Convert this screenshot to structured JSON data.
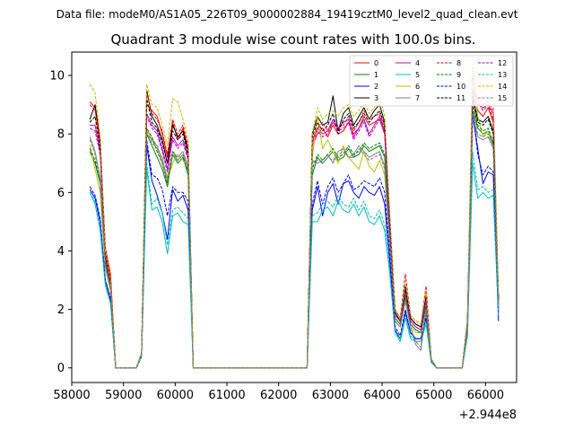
{
  "figure": {
    "suptitle": "Data file: modeM0/AS1A05_226T09_9000002884_19419cztM0_level2_quad_clean.evt"
  },
  "chart_data": {
    "type": "line",
    "title": "Quadrant 3 module wise count rates with 100.0s bins.",
    "xlabel": "",
    "ylabel": "",
    "x_offset_label": "+2.944e8",
    "xlim": [
      58000,
      66600
    ],
    "ylim": [
      -0.5,
      10.8
    ],
    "xticks": [
      58000,
      59000,
      60000,
      61000,
      62000,
      63000,
      64000,
      65000,
      66000
    ],
    "yticks": [
      0,
      2,
      4,
      6,
      8,
      10
    ],
    "legend_location": "upper right",
    "legend_columns": 4,
    "x": [
      58350,
      58450,
      58550,
      58650,
      58750,
      58850,
      58950,
      59050,
      59150,
      59250,
      59350,
      59450,
      59550,
      59650,
      59750,
      59850,
      59950,
      60050,
      60150,
      60250,
      60350,
      60450,
      60550,
      62550,
      62650,
      62750,
      62850,
      62950,
      63050,
      63150,
      63250,
      63350,
      63450,
      63550,
      63650,
      63750,
      63850,
      63950,
      64050,
      64150,
      64250,
      64350,
      64450,
      64550,
      64650,
      64750,
      64850,
      64950,
      65050,
      65150,
      65250,
      65350,
      65450,
      65550,
      65650,
      65750,
      65850,
      65950,
      66050,
      66150,
      66250
    ],
    "series": [
      {
        "name": "0",
        "color": "#ff0000",
        "dash": "solid",
        "values": [
          9.1,
          8.9,
          7.6,
          4.1,
          3.2,
          0.0,
          0.0,
          0.0,
          0.0,
          0.0,
          0.5,
          9.0,
          8.8,
          8.6,
          8.0,
          7.2,
          8.4,
          7.8,
          8.2,
          7.5,
          0.0,
          0.0,
          0.0,
          0.0,
          7.6,
          8.0,
          8.2,
          7.9,
          8.3,
          8.0,
          8.1,
          8.4,
          8.0,
          8.2,
          8.6,
          8.3,
          8.4,
          8.5,
          8.0,
          5.0,
          2.0,
          1.7,
          2.7,
          1.7,
          1.5,
          1.4,
          2.4,
          0.3,
          0.0,
          0.0,
          0.0,
          0.0,
          0.0,
          0.0,
          1.6,
          9.5,
          8.8,
          8.6,
          8.9,
          8.4,
          2.4
        ]
      },
      {
        "name": "1",
        "color": "#008000",
        "dash": "solid",
        "values": [
          7.4,
          7.0,
          6.3,
          3.6,
          2.8,
          0.0,
          0.0,
          0.0,
          0.0,
          0.0,
          0.5,
          8.0,
          7.6,
          7.2,
          6.8,
          6.2,
          7.3,
          7.0,
          7.2,
          6.6,
          0.0,
          0.0,
          0.0,
          0.0,
          6.6,
          7.2,
          7.0,
          7.2,
          7.4,
          7.1,
          7.2,
          7.5,
          7.2,
          7.3,
          7.6,
          7.4,
          7.5,
          7.6,
          7.2,
          4.4,
          1.7,
          1.5,
          2.4,
          1.5,
          1.3,
          1.2,
          2.1,
          0.3,
          0.0,
          0.0,
          0.0,
          0.0,
          0.0,
          0.0,
          1.5,
          8.8,
          8.2,
          8.0,
          8.1,
          7.6,
          2.1
        ]
      },
      {
        "name": "2",
        "color": "#0000ff",
        "dash": "solid",
        "values": [
          6.1,
          5.8,
          5.0,
          3.0,
          2.3,
          0.0,
          0.0,
          0.0,
          0.0,
          0.0,
          0.4,
          7.6,
          6.4,
          5.9,
          5.3,
          4.4,
          6.1,
          5.7,
          5.9,
          5.4,
          0.0,
          0.0,
          0.0,
          0.0,
          5.4,
          6.2,
          5.2,
          6.0,
          6.3,
          5.6,
          6.3,
          6.4,
          6.0,
          5.8,
          6.2,
          6.0,
          5.9,
          6.2,
          5.6,
          3.6,
          1.3,
          1.0,
          1.9,
          1.2,
          1.0,
          1.0,
          1.7,
          0.2,
          0.0,
          0.0,
          0.0,
          0.0,
          0.0,
          0.0,
          1.2,
          8.7,
          7.5,
          6.3,
          6.7,
          6.6,
          1.6
        ]
      },
      {
        "name": "3",
        "color": "#000000",
        "dash": "solid",
        "values": [
          8.5,
          9.0,
          7.8,
          3.9,
          3.0,
          0.0,
          0.0,
          0.0,
          0.0,
          0.0,
          0.5,
          9.5,
          8.6,
          8.3,
          7.8,
          7.0,
          8.3,
          7.9,
          8.1,
          7.4,
          0.0,
          0.0,
          0.0,
          0.0,
          8.0,
          8.6,
          8.3,
          8.4,
          9.3,
          8.1,
          8.7,
          8.9,
          8.3,
          8.6,
          8.9,
          8.5,
          8.8,
          9.0,
          8.4,
          5.0,
          1.9,
          1.6,
          2.8,
          1.7,
          1.5,
          1.4,
          2.5,
          0.3,
          0.0,
          0.0,
          0.0,
          0.0,
          0.0,
          0.0,
          1.6,
          9.3,
          8.5,
          8.4,
          8.6,
          8.1,
          2.3
        ]
      },
      {
        "name": "4",
        "color": "#bf00bf",
        "dash": "solid",
        "values": [
          8.3,
          8.3,
          7.4,
          3.8,
          2.9,
          0.0,
          0.0,
          0.0,
          0.0,
          0.0,
          0.5,
          8.7,
          8.3,
          8.1,
          7.5,
          6.8,
          7.9,
          7.6,
          7.8,
          7.2,
          0.0,
          0.0,
          0.0,
          0.0,
          7.8,
          8.2,
          8.0,
          8.1,
          8.5,
          8.2,
          8.4,
          8.5,
          7.9,
          8.2,
          8.5,
          8.0,
          8.3,
          8.6,
          8.1,
          4.8,
          1.8,
          1.6,
          2.6,
          1.6,
          1.4,
          1.3,
          2.3,
          0.3,
          0.0,
          0.0,
          0.0,
          0.0,
          0.0,
          0.0,
          1.5,
          9.2,
          9.0,
          8.9,
          9.0,
          8.7,
          2.3
        ]
      },
      {
        "name": "5",
        "color": "#00bfbf",
        "dash": "solid",
        "values": [
          6.0,
          5.6,
          4.7,
          2.8,
          2.2,
          0.0,
          0.0,
          0.0,
          0.0,
          0.0,
          0.4,
          6.8,
          5.4,
          5.5,
          5.0,
          3.9,
          5.2,
          5.3,
          5.0,
          4.9,
          0.0,
          0.0,
          0.0,
          0.0,
          5.0,
          5.0,
          5.4,
          5.5,
          5.2,
          5.7,
          5.4,
          5.3,
          5.6,
          5.2,
          5.5,
          5.0,
          4.9,
          5.2,
          4.7,
          3.2,
          1.2,
          0.9,
          1.7,
          1.0,
          0.9,
          0.9,
          1.5,
          0.2,
          0.0,
          0.0,
          0.0,
          0.0,
          0.0,
          0.0,
          1.1,
          7.0,
          5.8,
          6.0,
          5.8,
          5.9,
          1.8
        ]
      },
      {
        "name": "6",
        "color": "#bfbf00",
        "dash": "solid",
        "values": [
          7.6,
          6.8,
          6.0,
          3.4,
          2.6,
          0.0,
          0.0,
          0.0,
          0.0,
          0.0,
          0.5,
          8.2,
          7.8,
          7.5,
          7.2,
          6.4,
          7.0,
          7.3,
          7.1,
          6.8,
          0.0,
          0.0,
          0.0,
          0.0,
          7.2,
          8.6,
          7.5,
          7.8,
          7.4,
          7.0,
          7.6,
          7.2,
          7.0,
          6.8,
          7.4,
          6.9,
          6.7,
          7.1,
          6.6,
          4.2,
          1.6,
          1.4,
          2.3,
          1.4,
          1.2,
          1.2,
          2.0,
          0.3,
          0.0,
          0.0,
          0.0,
          0.0,
          0.0,
          0.0,
          1.4,
          10.2,
          8.6,
          7.9,
          8.1,
          7.7,
          2.0
        ]
      },
      {
        "name": "7",
        "color": "#808080",
        "dash": "solid",
        "values": [
          7.9,
          7.4,
          6.5,
          3.5,
          2.7,
          0.0,
          0.0,
          0.0,
          0.0,
          0.0,
          0.5,
          8.0,
          7.8,
          7.6,
          7.1,
          6.5,
          7.4,
          7.2,
          7.4,
          6.9,
          0.0,
          0.0,
          0.0,
          0.0,
          7.1,
          7.0,
          7.1,
          7.3,
          7.0,
          7.4,
          7.5,
          7.2,
          7.3,
          7.6,
          7.4,
          7.2,
          7.3,
          7.4,
          6.9,
          4.3,
          1.6,
          1.4,
          2.3,
          1.4,
          0.8,
          0.6,
          2.0,
          0.3,
          0.0,
          0.0,
          0.0,
          0.0,
          0.0,
          0.0,
          1.4,
          8.6,
          7.9,
          7.8,
          7.9,
          7.5,
          2.1
        ]
      },
      {
        "name": "8",
        "color": "#ff0000",
        "dash": "dashed",
        "values": [
          9.0,
          8.8,
          7.8,
          4.0,
          3.1,
          0.0,
          0.0,
          0.0,
          0.0,
          0.0,
          0.5,
          9.4,
          8.7,
          8.5,
          8.1,
          7.3,
          8.5,
          8.0,
          8.3,
          7.6,
          0.0,
          0.0,
          0.0,
          0.0,
          7.8,
          8.2,
          8.4,
          8.1,
          8.4,
          8.2,
          8.3,
          8.6,
          8.1,
          8.4,
          8.8,
          8.5,
          8.6,
          8.7,
          8.2,
          5.1,
          2.0,
          1.7,
          3.2,
          1.8,
          1.6,
          1.5,
          2.8,
          0.3,
          0.0,
          0.0,
          0.0,
          0.0,
          0.0,
          0.0,
          1.6,
          10.0,
          9.1,
          8.8,
          9.0,
          8.5,
          2.4
        ]
      },
      {
        "name": "9",
        "color": "#008000",
        "dash": "dashed",
        "values": [
          7.5,
          7.1,
          6.4,
          3.6,
          2.8,
          0.0,
          0.0,
          0.0,
          0.0,
          0.0,
          0.5,
          8.2,
          7.9,
          7.4,
          7.0,
          6.3,
          7.4,
          7.1,
          7.3,
          6.7,
          0.0,
          0.0,
          0.0,
          0.0,
          6.8,
          7.3,
          7.1,
          7.3,
          7.5,
          7.2,
          7.3,
          7.6,
          7.3,
          7.4,
          7.7,
          7.5,
          7.6,
          7.7,
          7.3,
          4.5,
          1.7,
          1.5,
          2.5,
          1.5,
          1.3,
          1.2,
          2.2,
          0.3,
          0.0,
          0.0,
          0.0,
          0.0,
          0.0,
          0.0,
          1.5,
          9.0,
          8.3,
          8.1,
          8.2,
          7.7,
          2.1
        ]
      },
      {
        "name": "10",
        "color": "#0000ff",
        "dash": "dashed",
        "values": [
          6.2,
          5.9,
          5.1,
          3.0,
          2.4,
          0.0,
          0.0,
          0.0,
          0.0,
          0.0,
          0.4,
          7.8,
          6.6,
          6.5,
          6.1,
          5.2,
          6.2,
          6.0,
          6.0,
          5.7,
          0.0,
          0.0,
          0.0,
          0.0,
          5.6,
          6.4,
          5.6,
          6.2,
          6.5,
          6.0,
          6.3,
          6.6,
          6.1,
          6.2,
          6.4,
          6.3,
          6.2,
          6.5,
          6.0,
          3.8,
          1.4,
          1.1,
          2.0,
          1.2,
          1.0,
          1.0,
          1.8,
          0.2,
          0.0,
          0.0,
          0.0,
          0.0,
          0.0,
          0.0,
          1.2,
          8.8,
          7.3,
          6.6,
          6.9,
          6.7,
          1.9
        ]
      },
      {
        "name": "11",
        "color": "#000000",
        "dash": "dashed",
        "values": [
          8.4,
          8.6,
          7.5,
          3.8,
          2.9,
          0.0,
          0.0,
          0.0,
          0.0,
          0.0,
          0.5,
          9.2,
          8.4,
          8.2,
          7.7,
          7.0,
          8.1,
          7.8,
          8.0,
          7.3,
          0.0,
          0.0,
          0.0,
          0.0,
          7.9,
          8.4,
          8.1,
          8.3,
          8.7,
          8.0,
          8.5,
          8.7,
          8.2,
          8.4,
          8.7,
          8.4,
          8.6,
          8.8,
          8.3,
          4.9,
          1.9,
          1.6,
          2.7,
          1.7,
          1.5,
          1.4,
          2.4,
          0.3,
          0.0,
          0.0,
          0.0,
          0.0,
          0.0,
          0.0,
          1.6,
          9.2,
          8.4,
          8.3,
          8.5,
          8.0,
          2.3
        ]
      },
      {
        "name": "12",
        "color": "#bf00bf",
        "dash": "dashed",
        "values": [
          8.2,
          8.1,
          7.3,
          3.7,
          2.9,
          0.0,
          0.0,
          0.0,
          0.0,
          0.0,
          0.5,
          8.6,
          8.2,
          8.0,
          7.4,
          6.7,
          7.8,
          7.5,
          7.7,
          7.1,
          0.0,
          0.0,
          0.0,
          0.0,
          7.7,
          8.1,
          7.9,
          8.0,
          8.4,
          8.1,
          8.2,
          8.4,
          7.8,
          8.1,
          8.4,
          7.9,
          8.2,
          8.5,
          8.0,
          4.7,
          1.8,
          1.6,
          2.6,
          1.6,
          1.4,
          1.3,
          2.3,
          0.3,
          0.0,
          0.0,
          0.0,
          0.0,
          0.0,
          0.0,
          1.5,
          9.5,
          9.2,
          9.0,
          9.1,
          8.8,
          2.3
        ]
      },
      {
        "name": "13",
        "color": "#00bfbf",
        "dash": "dashed",
        "values": [
          6.0,
          5.7,
          4.8,
          2.9,
          2.2,
          0.0,
          0.0,
          0.0,
          0.0,
          0.0,
          0.4,
          7.0,
          5.6,
          5.8,
          5.3,
          4.2,
          5.4,
          5.5,
          5.3,
          5.1,
          0.0,
          0.0,
          0.0,
          0.0,
          5.2,
          5.3,
          5.6,
          5.7,
          5.5,
          5.9,
          5.6,
          5.5,
          5.8,
          5.4,
          5.7,
          5.2,
          5.1,
          5.4,
          4.9,
          3.3,
          1.2,
          1.0,
          1.8,
          1.1,
          0.9,
          0.9,
          1.6,
          0.2,
          0.0,
          0.0,
          0.0,
          0.0,
          0.0,
          0.0,
          1.1,
          7.4,
          6.1,
          6.2,
          6.0,
          6.1,
          1.9
        ]
      },
      {
        "name": "14",
        "color": "#bfbf00",
        "dash": "dashed",
        "values": [
          9.7,
          9.4,
          7.9,
          4.0,
          3.0,
          0.0,
          0.0,
          0.0,
          0.0,
          0.0,
          0.5,
          9.7,
          9.0,
          8.9,
          8.3,
          7.6,
          9.2,
          9.1,
          8.5,
          7.8,
          0.0,
          0.0,
          0.0,
          0.0,
          8.0,
          8.9,
          8.5,
          8.7,
          8.8,
          8.6,
          8.9,
          9.0,
          8.6,
          8.8,
          9.1,
          8.7,
          8.9,
          9.3,
          8.6,
          5.2,
          2.0,
          1.7,
          2.9,
          1.8,
          1.6,
          1.5,
          2.6,
          0.3,
          0.0,
          0.0,
          0.0,
          0.0,
          0.0,
          0.0,
          1.6,
          10.4,
          9.6,
          9.4,
          9.7,
          9.3,
          2.5
        ]
      },
      {
        "name": "15",
        "color": "#808080",
        "dash": "dashed",
        "values": [
          7.8,
          7.3,
          6.4,
          3.5,
          2.7,
          0.0,
          0.0,
          0.0,
          0.0,
          0.0,
          0.5,
          8.1,
          7.7,
          7.5,
          7.0,
          6.4,
          7.3,
          7.1,
          7.3,
          6.8,
          0.0,
          0.0,
          0.0,
          0.0,
          7.0,
          7.1,
          7.0,
          7.2,
          7.1,
          7.3,
          7.4,
          7.2,
          7.2,
          7.5,
          7.3,
          7.1,
          7.2,
          7.3,
          6.8,
          4.2,
          1.6,
          1.4,
          2.3,
          1.4,
          0.9,
          0.7,
          2.0,
          0.3,
          0.0,
          0.0,
          0.0,
          0.0,
          0.0,
          0.0,
          1.4,
          8.7,
          8.0,
          7.9,
          8.0,
          7.6,
          2.1
        ]
      }
    ]
  }
}
